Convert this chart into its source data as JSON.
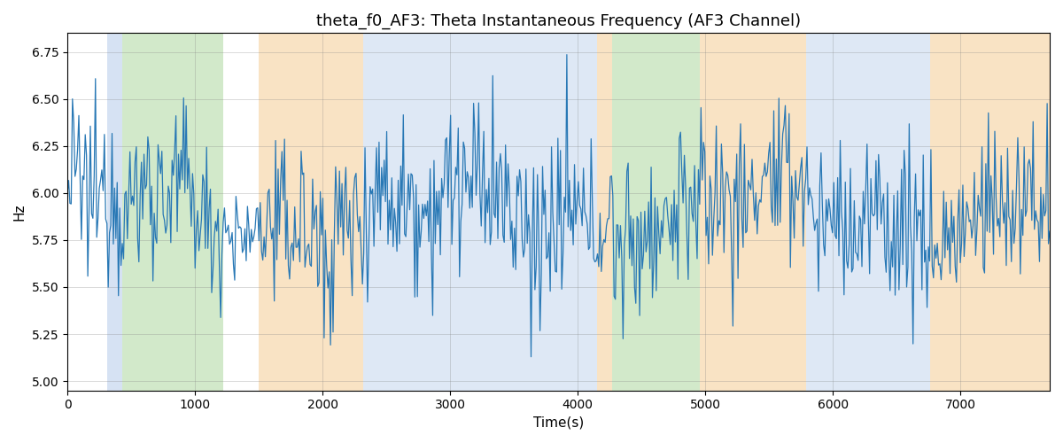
{
  "title": "theta_f0_AF3: Theta Instantaneous Frequency (AF3 Channel)",
  "xlabel": "Time(s)",
  "ylabel": "Hz",
  "ylim": [
    4.95,
    6.85
  ],
  "xlim": [
    0,
    7700
  ],
  "yticks": [
    5.0,
    5.25,
    5.5,
    5.75,
    6.0,
    6.25,
    6.5,
    6.75
  ],
  "xticks": [
    0,
    1000,
    2000,
    3000,
    4000,
    5000,
    6000,
    7000
  ],
  "line_color": "#2878b5",
  "line_width": 0.9,
  "grid": true,
  "background_color": "#ffffff",
  "colored_bands": [
    {
      "xmin": 310,
      "xmax": 430,
      "color": "#aec6e8",
      "alpha": 0.5
    },
    {
      "xmin": 430,
      "xmax": 1220,
      "color": "#90c97c",
      "alpha": 0.4
    },
    {
      "xmin": 1500,
      "xmax": 2320,
      "color": "#f5c98a",
      "alpha": 0.5
    },
    {
      "xmin": 2320,
      "xmax": 4150,
      "color": "#aec6e8",
      "alpha": 0.4
    },
    {
      "xmin": 4150,
      "xmax": 4270,
      "color": "#f5c98a",
      "alpha": 0.5
    },
    {
      "xmin": 4270,
      "xmax": 4960,
      "color": "#90c97c",
      "alpha": 0.4
    },
    {
      "xmin": 4960,
      "xmax": 5790,
      "color": "#f5c98a",
      "alpha": 0.5
    },
    {
      "xmin": 5790,
      "xmax": 6760,
      "color": "#aec6e8",
      "alpha": 0.4
    },
    {
      "xmin": 6760,
      "xmax": 7800,
      "color": "#f5c98a",
      "alpha": 0.5
    }
  ],
  "seed": 12345,
  "n_points": 770,
  "total_time": 7700,
  "base_freq": 5.9,
  "noise_std": 0.22
}
